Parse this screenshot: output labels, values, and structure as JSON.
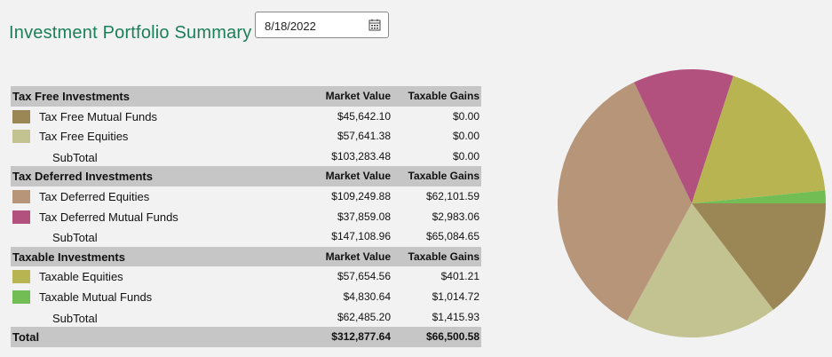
{
  "header": {
    "title": "Investment Portfolio Summary",
    "date_value": "8/18/2022"
  },
  "sections": [
    {
      "title": "Tax Free Investments",
      "col_market_value": "Market Value",
      "col_taxable_gains": "Taxable Gains",
      "items": [
        {
          "label": "Tax Free Mutual Funds",
          "market_value": "$45,642.10",
          "taxable_gains": "$0.00",
          "color": "#9b8756"
        },
        {
          "label": "Tax Free Equities",
          "market_value": "$57,641.38",
          "taxable_gains": "$0.00",
          "color": "#c3c392"
        }
      ],
      "subtotal": {
        "label": "SubTotal",
        "market_value": "$103,283.48",
        "taxable_gains": "$0.00"
      }
    },
    {
      "title": "Tax Deferred Investments",
      "col_market_value": "Market Value",
      "col_taxable_gains": "Taxable Gains",
      "items": [
        {
          "label": "Tax Deferred Equities",
          "market_value": "$109,249.88",
          "taxable_gains": "$62,101.59",
          "color": "#b69579"
        },
        {
          "label": "Tax Deferred Mutual Funds",
          "market_value": "$37,859.08",
          "taxable_gains": "$2,983.06",
          "color": "#b2517e"
        }
      ],
      "subtotal": {
        "label": "SubTotal",
        "market_value": "$147,108.96",
        "taxable_gains": "$65,084.65"
      }
    },
    {
      "title": "Taxable Investments",
      "col_market_value": "Market Value",
      "col_taxable_gains": "Taxable Gains",
      "items": [
        {
          "label": "Taxable Equities",
          "market_value": "$57,654.56",
          "taxable_gains": "$401.21",
          "color": "#b8b452"
        },
        {
          "label": "Taxable Mutual Funds",
          "market_value": "$4,830.64",
          "taxable_gains": "$1,014.72",
          "color": "#72be55"
        }
      ],
      "subtotal": {
        "label": "SubTotal",
        "market_value": "$62,485.20",
        "taxable_gains": "$1,415.93"
      }
    }
  ],
  "total": {
    "label": "Total",
    "market_value": "$312,877.64",
    "taxable_gains": "$66,500.58"
  },
  "chart_data": {
    "type": "pie",
    "title": "",
    "slices": [
      {
        "value": 45642.1,
        "color": "#9b8756"
      },
      {
        "value": 57641.38,
        "color": "#c3c392"
      },
      {
        "value": 109249.88,
        "color": "#b69579"
      },
      {
        "value": 37859.08,
        "color": "#b2517e"
      },
      {
        "value": 57654.56,
        "color": "#b8b452"
      },
      {
        "value": 4830.64,
        "color": "#72be55"
      }
    ]
  }
}
